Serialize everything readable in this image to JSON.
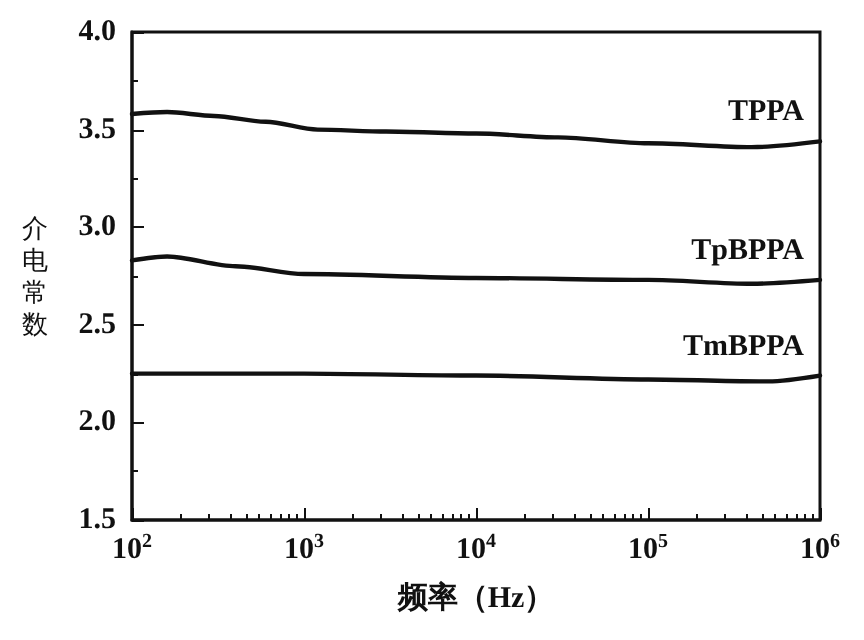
{
  "chart_data": {
    "type": "line",
    "xlabel": "频率（Hz）",
    "ylabel": "介电常数",
    "log": "x",
    "xlim": [
      100,
      1000000
    ],
    "xticks": [
      {
        "value": 100,
        "label": "10$^{2}$"
      },
      {
        "value": 1000,
        "label": "10$^{3}$"
      },
      {
        "value": 10000,
        "label": "10$^{4}$"
      },
      {
        "value": 100000,
        "label": "10$^{5}$"
      },
      {
        "value": 1000000,
        "label": "10$^{6}$"
      }
    ],
    "ylim": [
      1.5,
      4.0
    ],
    "yticks": [
      {
        "value": 1.5,
        "label": "1.5"
      },
      {
        "value": 2.0,
        "label": "2.0"
      },
      {
        "value": 2.5,
        "label": "2.5"
      },
      {
        "value": 3.0,
        "label": "3.0"
      },
      {
        "value": 3.5,
        "label": "3.5"
      },
      {
        "value": 4.0,
        "label": "4.0"
      }
    ],
    "grid": false,
    "legend": false,
    "marker": "none",
    "line_style": "solid",
    "series": [
      {
        "name": "TPPA",
        "color": "#111111",
        "x": [
          100,
          160,
          300,
          600,
          1200,
          3000,
          10000,
          30000,
          100000,
          400000,
          1000000
        ],
        "values": [
          3.58,
          3.59,
          3.57,
          3.54,
          3.5,
          3.49,
          3.48,
          3.46,
          3.43,
          3.41,
          3.44
        ]
      },
      {
        "name": "TpBPPA",
        "color": "#111111",
        "x": [
          100,
          160,
          400,
          1000,
          10000,
          100000,
          400000,
          1000000
        ],
        "values": [
          2.83,
          2.85,
          2.8,
          2.76,
          2.74,
          2.73,
          2.71,
          2.73
        ]
      },
      {
        "name": "TmBPPA",
        "color": "#111111",
        "x": [
          100,
          1000,
          10000,
          100000,
          500000,
          1000000
        ],
        "values": [
          2.25,
          2.25,
          2.24,
          2.22,
          2.21,
          2.24
        ]
      }
    ]
  }
}
